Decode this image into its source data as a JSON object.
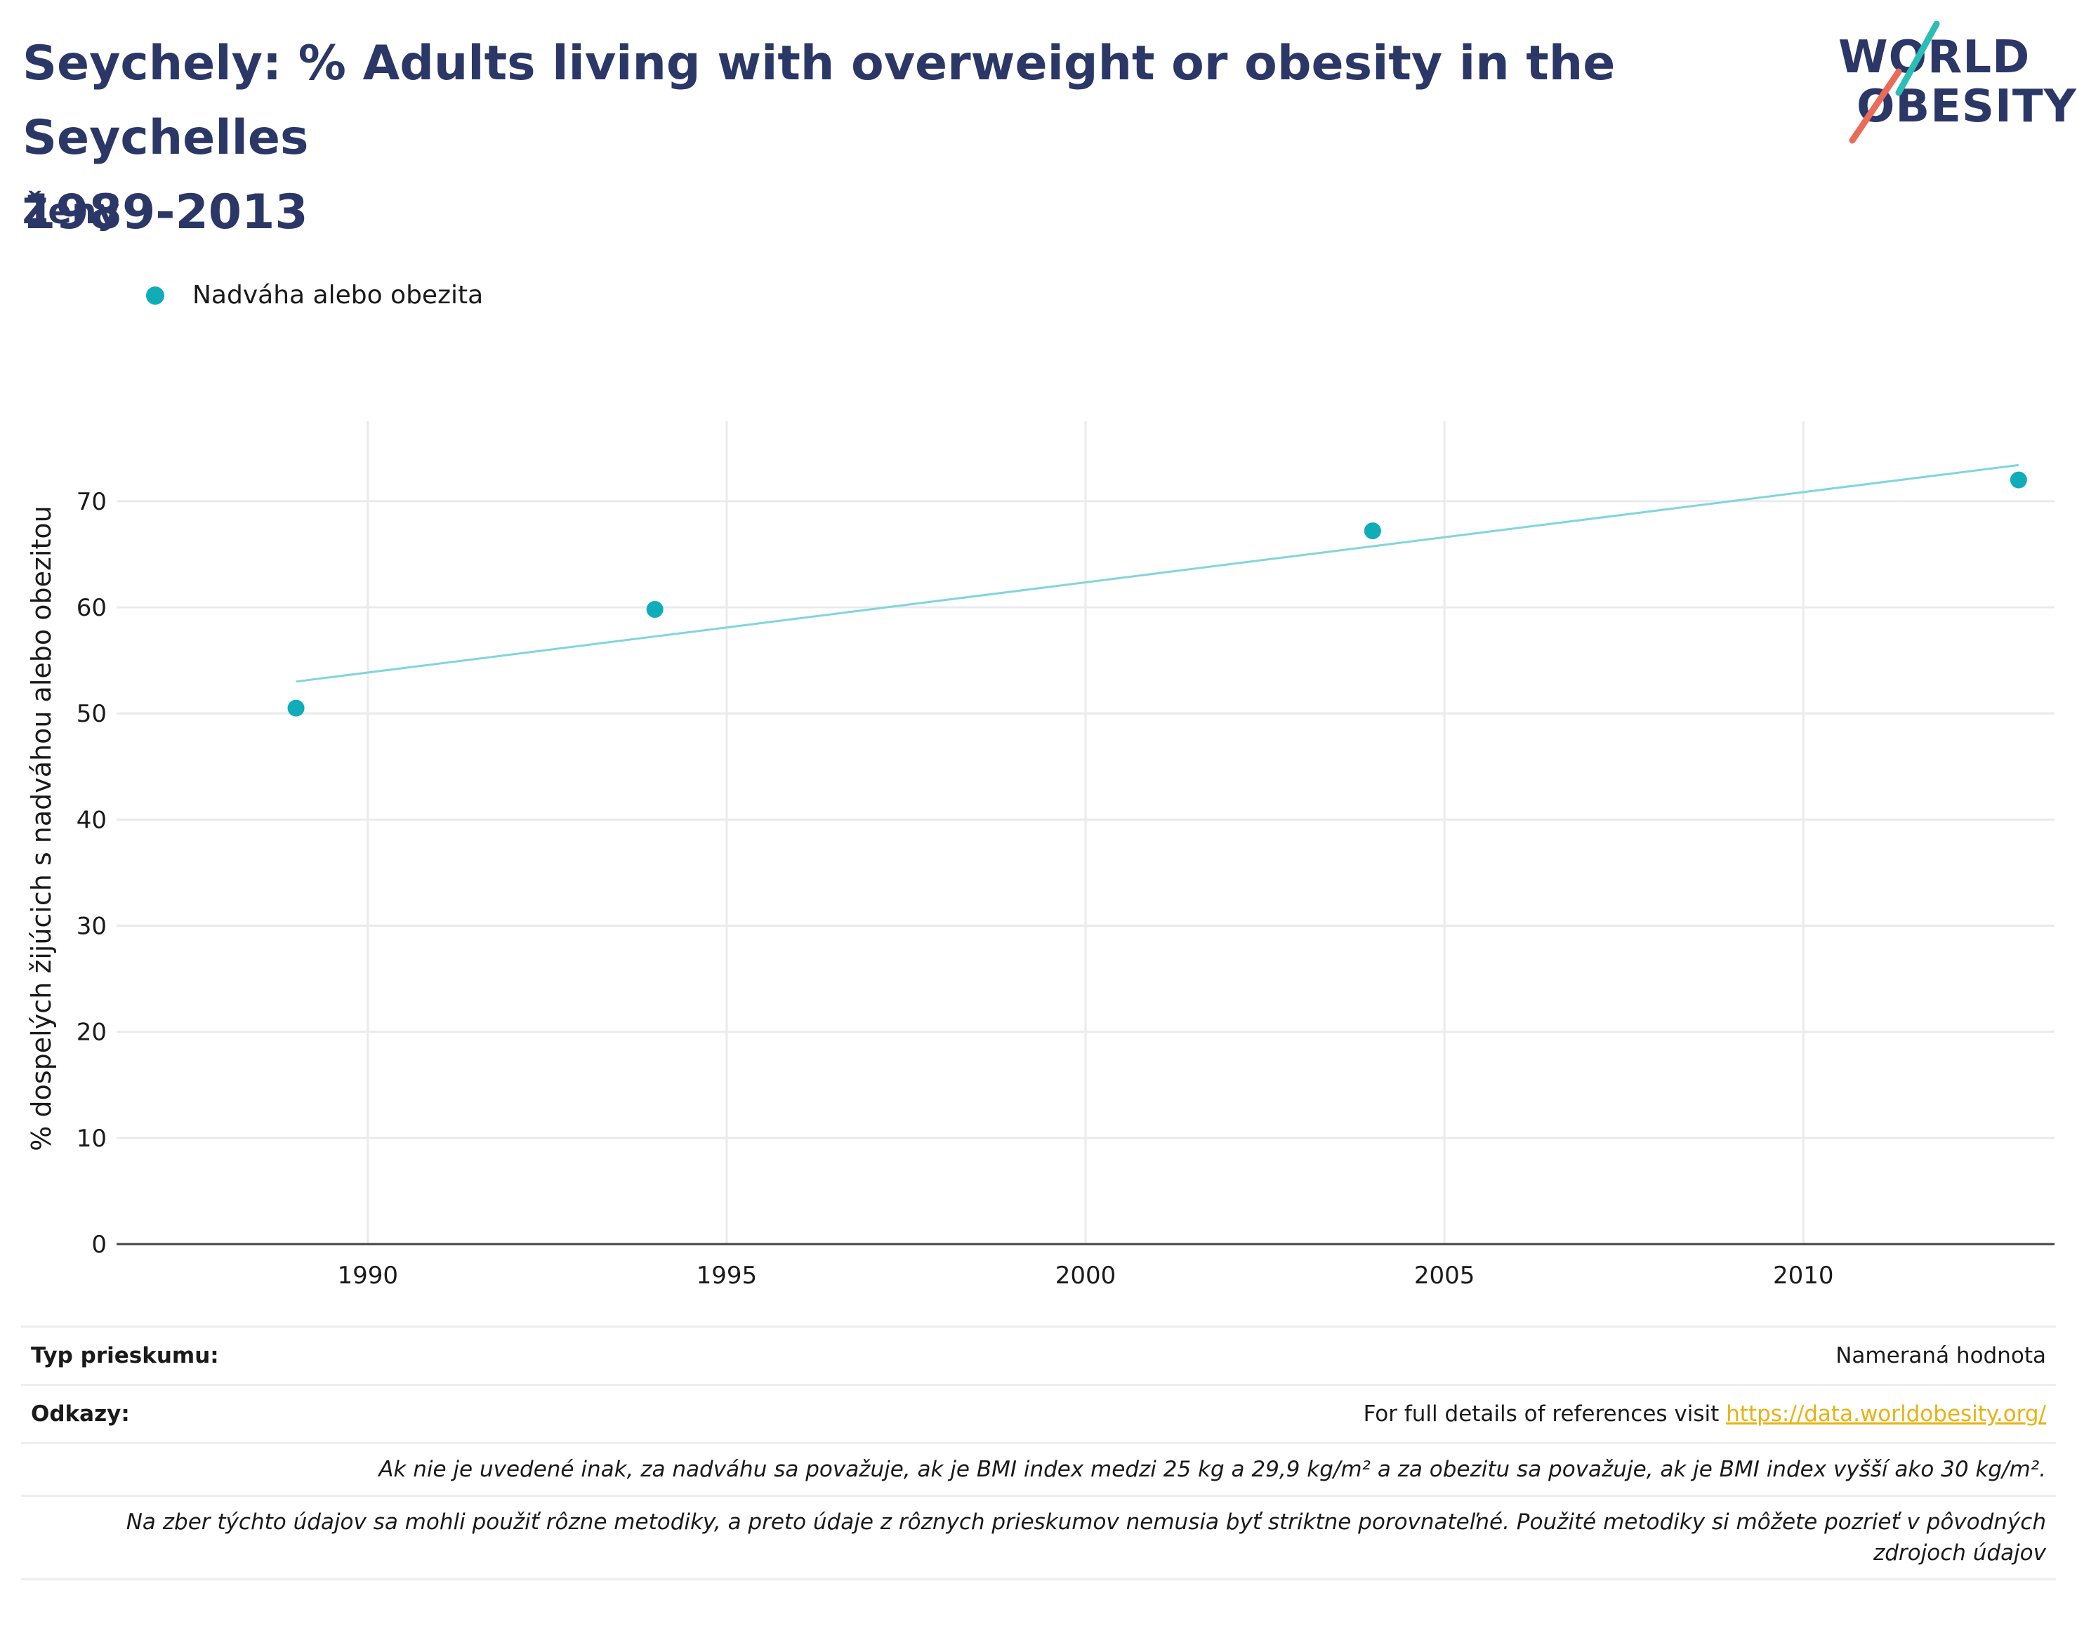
{
  "header": {
    "title_line1": "Seychely: % Adults living with overweight or obesity in the Seychelles",
    "title_line2": "1989-2013",
    "subtitle": "Ženy"
  },
  "logo": {
    "line1": "WORLD",
    "line2": "OBESITY",
    "accent_teal": "#2bbdb6",
    "accent_coral": "#ea6b57"
  },
  "legend": {
    "label": "Nadváha alebo obezita",
    "color": "#10adb9"
  },
  "chart_data": {
    "type": "scatter",
    "title": "",
    "xlabel": "",
    "ylabel": "% dospelých žijúcich s nadváhou alebo obezitou",
    "xlim": [
      1986.5,
      2013.5
    ],
    "ylim": [
      0,
      77
    ],
    "x_ticks": [
      1990,
      1995,
      2000,
      2005,
      2010
    ],
    "y_ticks": [
      0,
      10,
      20,
      30,
      40,
      50,
      60,
      70
    ],
    "grid": true,
    "legend_position": "top-left",
    "series": [
      {
        "name": "Nadváha alebo obezita",
        "color": "#10adb9",
        "points": [
          {
            "x": 1989,
            "y": 50.5
          },
          {
            "x": 1994,
            "y": 59.8
          },
          {
            "x": 2004,
            "y": 67.2
          },
          {
            "x": 2013,
            "y": 72.0
          }
        ]
      }
    ],
    "trendline": {
      "color": "#7fd6dc",
      "points": [
        {
          "x": 1989,
          "y": 53.0
        },
        {
          "x": 2013,
          "y": 73.4
        }
      ]
    }
  },
  "footer": {
    "survey_type_label": "Typ prieskumu:",
    "survey_type_value": "Nameraná hodnota",
    "references_label": "Odkazy:",
    "references_text": "For full details of references visit ",
    "references_link": "https://data.worldobesity.org/",
    "note1": "Ak nie je uvedené inak, za nadváhu sa považuje, ak je BMI index medzi 25 kg a 29,9 kg/m² a za obezitu sa považuje, ak je BMI index vyšší ako 30 kg/m².",
    "note2": "Na zber týchto údajov sa mohli použiť rôzne metodiky, a preto údaje z rôznych prieskumov nemusia byť striktne porovnateľné. Použité metodiky si môžete pozrieť v pôvodných zdrojoch údajov"
  }
}
